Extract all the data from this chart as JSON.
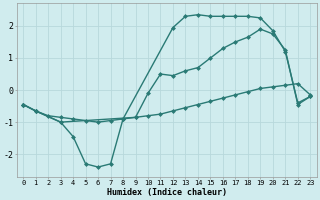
{
  "background_color": "#d0ecee",
  "grid_color": "#b8d8dc",
  "line_color": "#2a7a75",
  "marker": "D",
  "markersize": 2.5,
  "linewidth": 1.0,
  "xlabel": "Humidex (Indice chaleur)",
  "xlim": [
    -0.5,
    23.5
  ],
  "ylim": [
    -2.7,
    2.7
  ],
  "xticks": [
    0,
    1,
    2,
    3,
    4,
    5,
    6,
    7,
    8,
    9,
    10,
    11,
    12,
    13,
    14,
    15,
    16,
    17,
    18,
    19,
    20,
    21,
    22,
    23
  ],
  "yticks": [
    -2,
    -1,
    0,
    1,
    2
  ],
  "line1_x": [
    0,
    1,
    2,
    3,
    4,
    5,
    6,
    7,
    8,
    9,
    10,
    11,
    12,
    13,
    14,
    15,
    16,
    17,
    18,
    19,
    20,
    21,
    22,
    23
  ],
  "line1_y": [
    -0.45,
    -0.65,
    -0.8,
    -0.85,
    -0.9,
    -0.95,
    -1.0,
    -0.95,
    -0.9,
    -0.85,
    -0.8,
    -0.75,
    -0.65,
    -0.55,
    -0.45,
    -0.35,
    -0.25,
    -0.15,
    -0.05,
    0.05,
    0.1,
    0.15,
    0.2,
    -0.15
  ],
  "line2_x": [
    0,
    1,
    3,
    4,
    5,
    6,
    7,
    8,
    12,
    13,
    14,
    15,
    16,
    17,
    18,
    19,
    20,
    21,
    22,
    23
  ],
  "line2_y": [
    -0.45,
    -0.65,
    -1.0,
    -1.45,
    -2.3,
    -2.4,
    -2.3,
    -0.9,
    1.95,
    2.3,
    2.35,
    2.3,
    2.3,
    2.3,
    2.3,
    2.25,
    1.85,
    1.2,
    -0.4,
    -0.2
  ],
  "line3_x": [
    0,
    1,
    3,
    9,
    10,
    11,
    12,
    13,
    14,
    15,
    16,
    17,
    18,
    19,
    20,
    21,
    22,
    23
  ],
  "line3_y": [
    -0.45,
    -0.65,
    -1.0,
    -0.85,
    -0.1,
    0.5,
    0.45,
    0.6,
    0.7,
    1.0,
    1.3,
    1.5,
    1.65,
    1.9,
    1.75,
    1.25,
    -0.45,
    -0.2
  ]
}
